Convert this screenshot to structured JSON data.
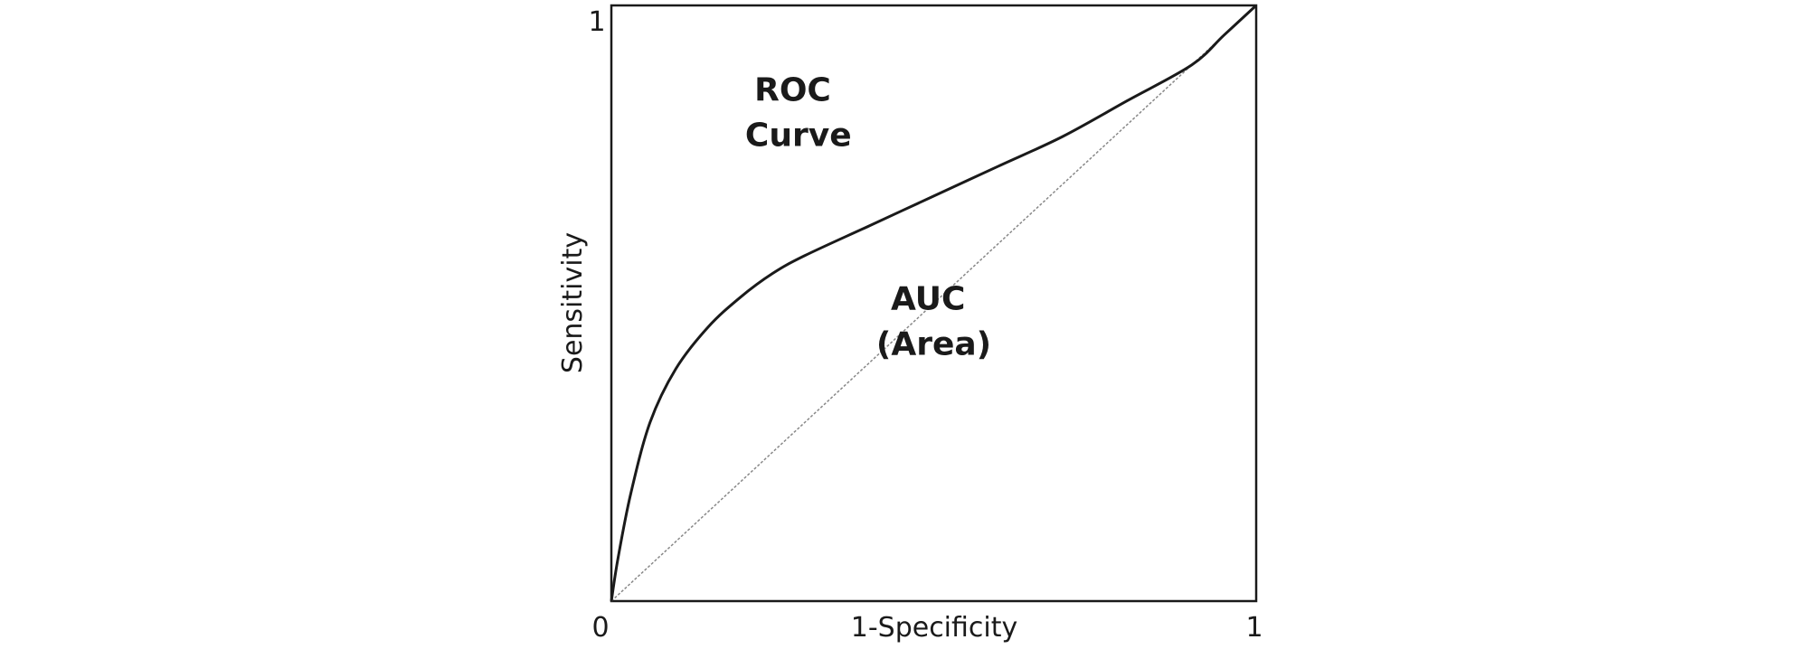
{
  "chart_data": {
    "type": "line",
    "title": "",
    "xlabel": "1-Specificity",
    "ylabel": "Sensitivity",
    "xlim": [
      0,
      1
    ],
    "ylim": [
      0,
      1
    ],
    "x_ticks": [
      "0",
      "1"
    ],
    "y_ticks": [
      "1"
    ],
    "grid": false,
    "series": [
      {
        "kind": "roc-curve",
        "x": [
          0,
          0.01,
          0.03,
          0.06,
          0.1,
          0.15,
          0.2,
          0.25,
          0.3,
          0.4,
          0.5,
          0.6,
          0.7,
          0.8,
          0.9,
          0.95,
          1
        ],
        "y": [
          0,
          0.07,
          0.18,
          0.3,
          0.39,
          0.46,
          0.51,
          0.55,
          0.58,
          0.63,
          0.68,
          0.73,
          0.78,
          0.84,
          0.9,
          0.95,
          1
        ],
        "color": "#1a1a1a"
      },
      {
        "kind": "diagonal-reference",
        "x": [
          0,
          1
        ],
        "y": [
          0,
          1
        ],
        "color": "#888888"
      }
    ],
    "annotations": [
      {
        "lines": [
          "ROC",
          "Curve"
        ],
        "x": 0.29,
        "y": 0.82
      },
      {
        "lines": [
          "AUC",
          "(Area)"
        ],
        "x": 0.5,
        "y": 0.47
      }
    ]
  }
}
